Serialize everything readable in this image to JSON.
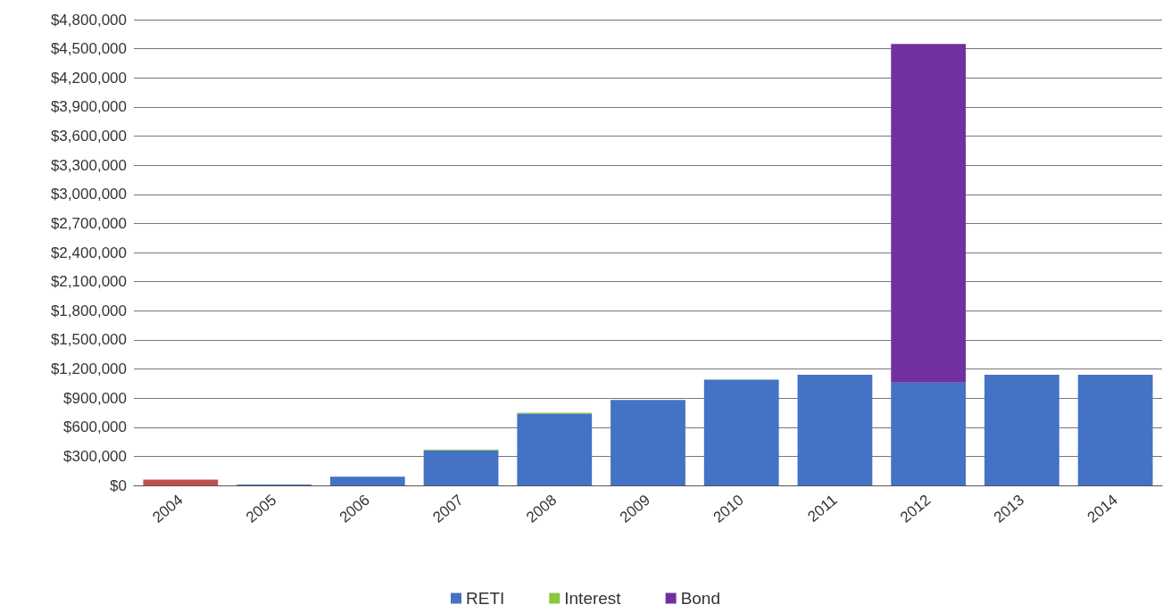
{
  "chart_data": {
    "type": "bar",
    "stacked": true,
    "categories": [
      "2004",
      "2005",
      "2006",
      "2007",
      "2008",
      "2009",
      "2010",
      "2011",
      "2012",
      "2013",
      "2014"
    ],
    "series": [
      {
        "color": "#c0504d",
        "values": [
          60000,
          0,
          0,
          0,
          0,
          0,
          0,
          0,
          0,
          0,
          0
        ]
      },
      {
        "name": "RETI",
        "color": "#4472c4",
        "values": [
          0,
          10000,
          90000,
          360000,
          740000,
          880000,
          1090000,
          1140000,
          1060000,
          1140000,
          1140000
        ]
      },
      {
        "name": "Interest",
        "color": "#8cc63f",
        "values": [
          0,
          0,
          0,
          10000,
          10000,
          0,
          0,
          0,
          0,
          0,
          0
        ]
      },
      {
        "name": "Bond",
        "color": "#7030a0",
        "values": [
          0,
          0,
          0,
          0,
          0,
          0,
          0,
          0,
          3490000,
          0,
          0
        ]
      }
    ],
    "ylim": [
      0,
      4800000
    ],
    "yticks": [
      {
        "value": 0,
        "label": "$0"
      },
      {
        "value": 300000,
        "label": "$300,000"
      },
      {
        "value": 600000,
        "label": "$600,000"
      },
      {
        "value": 900000,
        "label": "$900,000"
      },
      {
        "value": 1200000,
        "label": "$1,200,000"
      },
      {
        "value": 1500000,
        "label": "$1,500,000"
      },
      {
        "value": 1800000,
        "label": "$1,800,000"
      },
      {
        "value": 2100000,
        "label": "$2,100,000"
      },
      {
        "value": 2400000,
        "label": "$2,400,000"
      },
      {
        "value": 2700000,
        "label": "$2,700,000"
      },
      {
        "value": 3000000,
        "label": "$3,000,000"
      },
      {
        "value": 3300000,
        "label": "$3,300,000"
      },
      {
        "value": 3600000,
        "label": "$3,600,000"
      },
      {
        "value": 3900000,
        "label": "$3,900,000"
      },
      {
        "value": 4200000,
        "label": "$4,200,000"
      },
      {
        "value": 4500000,
        "label": "$4,500,000"
      },
      {
        "value": 4800000,
        "label": "$4,800,000"
      }
    ],
    "grid": "y",
    "legend": "bottom"
  }
}
